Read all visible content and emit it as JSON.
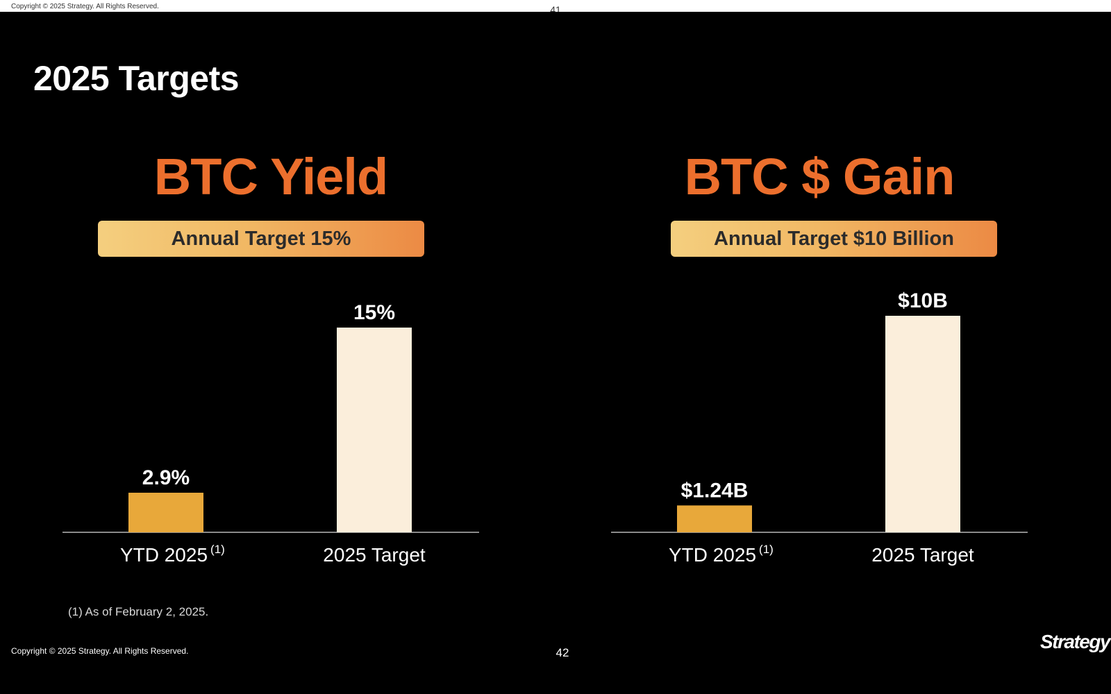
{
  "header": {
    "prev_slide_copyright": "Copyright © 2025 Strategy. All Rights Reserved.",
    "prev_slide_page": "41"
  },
  "page_title": "2025 Targets",
  "panels": [
    {
      "title": "BTC Yield",
      "target_label": "Annual Target 15%"
    },
    {
      "title": "BTC $ Gain",
      "target_label": "Annual Target $10 Billion"
    }
  ],
  "chart_data": [
    {
      "type": "bar",
      "title": "BTC Yield",
      "categories": [
        "YTD 2025",
        "2025 Target"
      ],
      "category_superscripts": [
        "(1)",
        ""
      ],
      "values": [
        2.9,
        15
      ],
      "value_labels": [
        "2.9%",
        "15%"
      ],
      "colors": [
        "#e8a83a",
        "#fbeedb"
      ],
      "xlabel": "",
      "ylabel": "",
      "ylim": [
        0,
        15
      ],
      "grid": false
    },
    {
      "type": "bar",
      "title": "BTC $ Gain",
      "categories": [
        "YTD 2025",
        "2025 Target"
      ],
      "category_superscripts": [
        "(1)",
        ""
      ],
      "values": [
        1.24,
        10
      ],
      "value_labels": [
        "$1.24B",
        "$10B"
      ],
      "colors": [
        "#e8a83a",
        "#fbeedb"
      ],
      "xlabel": "",
      "ylabel": "",
      "ylim": [
        0,
        10
      ],
      "grid": false
    }
  ],
  "footnote": "(1) As of February 2, 2025.",
  "footer": {
    "copyright": "Copyright © 2025 Strategy. All Rights Reserved.",
    "page_number": "42",
    "logo_text": "Strategy"
  },
  "colors": {
    "background": "#000000",
    "accent_orange": "#ec6f2d",
    "bar_ytd": "#e8a83a",
    "bar_target": "#fbeedb"
  }
}
